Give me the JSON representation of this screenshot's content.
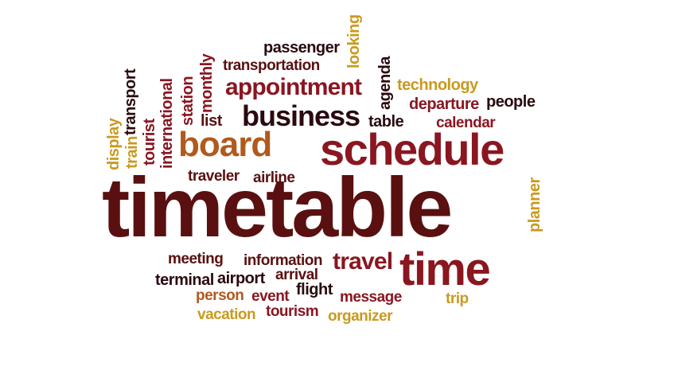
{
  "colors": {
    "maroon": "#5a1010",
    "crimson": "#8a1620",
    "orange": "#b05a1e",
    "gold": "#c99a1e",
    "dark": "#2a0a0e"
  },
  "words": {
    "timetable": "timetable",
    "schedule": "schedule",
    "time": "time",
    "board": "board",
    "business": "business",
    "appointment": "appointment",
    "travel": "travel",
    "passenger": "passenger",
    "transportation": "transportation",
    "looking": "looking",
    "agenda": "agenda",
    "technology": "technology",
    "departure": "departure",
    "people": "people",
    "table": "table",
    "calendar": "calendar",
    "list": "list",
    "monthly": "monthly",
    "station": "station",
    "international": "international",
    "transport": "transport",
    "tourist": "tourist",
    "train": "train",
    "display": "display",
    "traveler": "traveler",
    "airline": "airline",
    "planner": "planner",
    "meeting": "meeting",
    "information": "information",
    "terminal": "terminal",
    "airport": "airport",
    "arrival": "arrival",
    "flight": "flight",
    "person": "person",
    "event": "event",
    "message": "message",
    "trip": "trip",
    "vacation": "vacation",
    "tourism": "tourism",
    "organizer": "organizer"
  }
}
